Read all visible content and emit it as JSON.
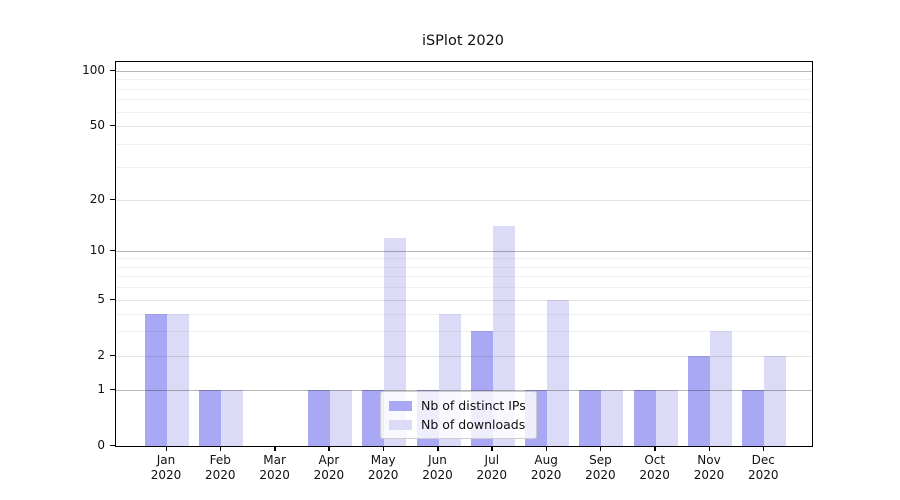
{
  "title": "iSPlot 2020",
  "legend": {
    "entries": [
      "Nb of distinct IPs",
      "Nb of downloads"
    ]
  },
  "chart_data": {
    "type": "bar",
    "title": "iSPlot 2020",
    "xlabel": "",
    "ylabel": "",
    "year_label": "2020",
    "categories": [
      "Jan",
      "Feb",
      "Mar",
      "Apr",
      "May",
      "Jun",
      "Jul",
      "Aug",
      "Sep",
      "Oct",
      "Nov",
      "Dec"
    ],
    "series": [
      {
        "name": "Nb of distinct IPs",
        "color": "#a8a8f4",
        "values": [
          4,
          1,
          0,
          1,
          1,
          1,
          3,
          1,
          1,
          1,
          2,
          1
        ]
      },
      {
        "name": "Nb of downloads",
        "color": "#dbdbf8",
        "values": [
          4,
          1,
          0,
          1,
          12,
          4,
          14,
          5,
          1,
          1,
          3,
          2
        ]
      }
    ],
    "yaxis": {
      "scale": "log-like (0 at baseline)",
      "tick_values": [
        0,
        1,
        2,
        5,
        10,
        20,
        50,
        100
      ],
      "tick_labels": [
        "0",
        "1",
        "2",
        "5",
        "10",
        "20",
        "50",
        "100"
      ],
      "minor_grid_values": [
        3,
        4,
        6,
        7,
        8,
        9,
        30,
        40,
        60,
        70,
        80,
        90
      ],
      "major_grid_values": [
        1,
        10,
        100
      ],
      "ylim": [
        0,
        100
      ]
    },
    "grid": true,
    "grid_drawn_above_bars": true,
    "legend_position": "bottom-center"
  }
}
